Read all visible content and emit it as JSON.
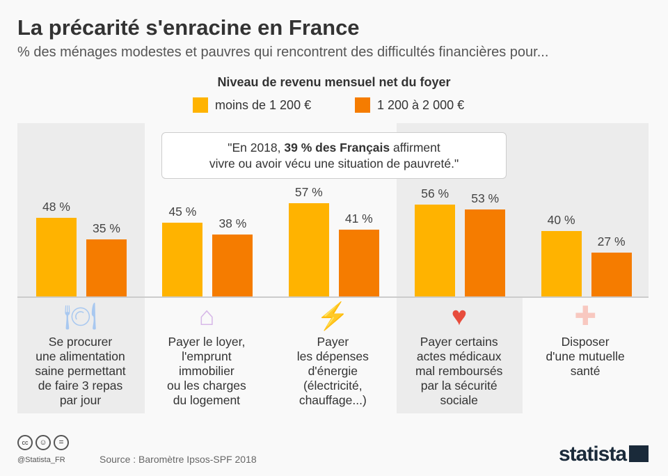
{
  "header": {
    "title": "La précarité s'enracine en France",
    "subtitle": "% des ménages modestes et pauvres qui rencontrent des difficultés financières pour..."
  },
  "quote": {
    "before": "\"En 2018, ",
    "bold": "39 % des Français",
    "after": " affirment",
    "line2": "vivre ou avoir vécu une situation de pauvreté.\""
  },
  "chart_data": {
    "type": "bar",
    "legend_title": "Niveau de revenu mensuel net du foyer",
    "categories": [
      "Se procurer une alimentation saine permettant de faire 3 repas par jour",
      "Payer le loyer, l'emprunt immobilier ou les charges du logement",
      "Payer les dépenses d'énergie (électricité, chauffage...)",
      "Payer certains actes médicaux mal remboursés par la sécurité sociale",
      "Disposer d'une mutuelle santé"
    ],
    "category_lines": [
      [
        "Se procurer",
        "une alimentation",
        "saine permettant",
        "de faire 3 repas",
        "par jour"
      ],
      [
        "Payer le loyer,",
        "l'emprunt",
        "immobilier",
        "ou les charges",
        "du logement"
      ],
      [
        "Payer",
        "les dépenses",
        "d'énergie",
        "(électricité,",
        "chauffage...)"
      ],
      [
        "Payer certains",
        "actes médicaux",
        "mal remboursés",
        "par la sécurité",
        "sociale"
      ],
      [
        "Disposer",
        "d'une mutuelle",
        "santé"
      ]
    ],
    "icons": [
      "plate-cutlery-icon",
      "house-icon",
      "lightning-icon",
      "heart-pulse-icon",
      "medical-cross-icon"
    ],
    "icon_colors": [
      "#a8c8f0",
      "#d7b8e8",
      "#ffc107",
      "#e74c3c",
      "#f8c8c0"
    ],
    "series": [
      {
        "name": "moins de 1 200 €",
        "color": "#ffb300",
        "values": [
          48,
          45,
          57,
          56,
          40
        ]
      },
      {
        "name": "1 200 à 2 000 €",
        "color": "#f57c00",
        "values": [
          35,
          38,
          41,
          53,
          27
        ]
      }
    ],
    "value_suffix": " %",
    "ylim": [
      0,
      100
    ]
  },
  "footer": {
    "handle": "@Statista_FR",
    "source": "Source : Baromètre Ipsos-SPF 2018",
    "logo": "statista"
  }
}
